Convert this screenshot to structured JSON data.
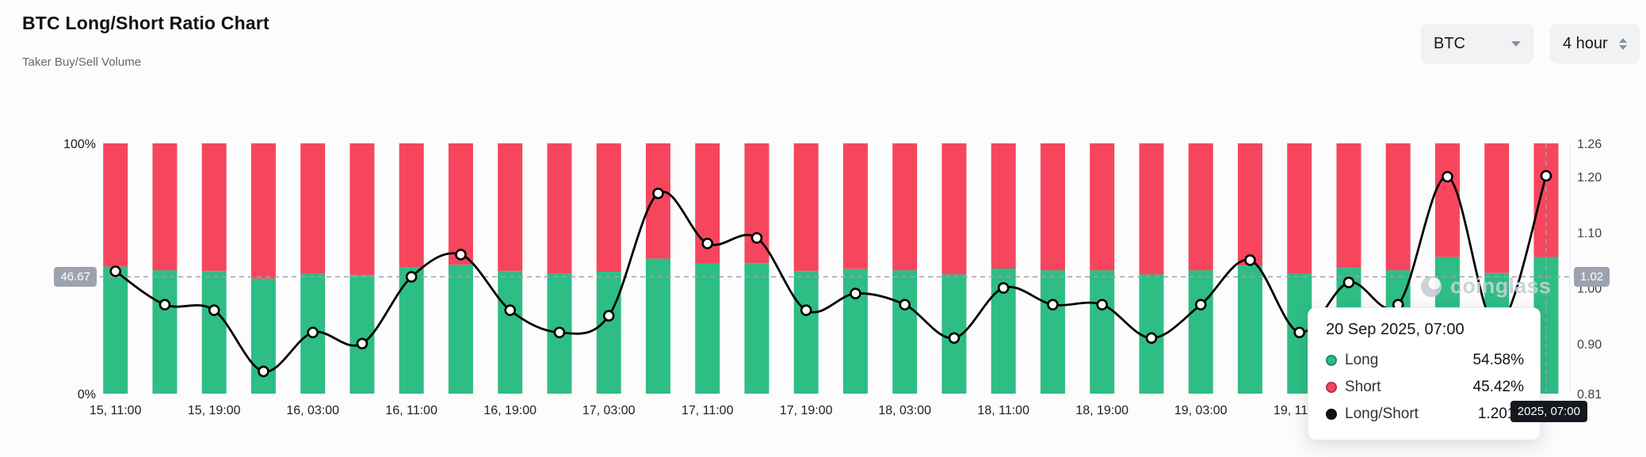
{
  "page": {
    "title": "BTC Long/Short Ratio Chart",
    "subtitle": "Taker Buy/Sell Volume"
  },
  "controls": {
    "symbol": {
      "value": "BTC"
    },
    "interval": {
      "value": "4 hour"
    }
  },
  "watermark": {
    "text": "coinglass"
  },
  "colors": {
    "long": "#2ebd85",
    "short": "#f6465d",
    "line": "#000000",
    "crosshair": "#9aa3ad"
  },
  "crosshair": {
    "left_label": "46.67",
    "right_label": "1.02",
    "time_label": "2025, 07:00",
    "pct": 46.67
  },
  "tooltip": {
    "title": "20 Sep 2025, 07:00",
    "rows": [
      {
        "label": "Long",
        "value": "54.58%",
        "color": "#2ebd85"
      },
      {
        "label": "Short",
        "value": "45.42%",
        "color": "#f6465d"
      },
      {
        "label": "Long/Short",
        "value": "1.2017",
        "color": "#111111"
      }
    ]
  },
  "chart_data": {
    "type": "stacked-bar+line",
    "title": "BTC Long/Short Ratio Chart",
    "subtitle": "Taker Buy/Sell Volume",
    "categories": [
      "15, 11:00",
      "15, 15:00",
      "15, 19:00",
      "15, 23:00",
      "16, 03:00",
      "16, 07:00",
      "16, 11:00",
      "16, 15:00",
      "16, 19:00",
      "16, 23:00",
      "17, 03:00",
      "17, 07:00",
      "17, 11:00",
      "17, 15:00",
      "17, 19:00",
      "17, 23:00",
      "18, 03:00",
      "18, 07:00",
      "18, 11:00",
      "18, 15:00",
      "18, 19:00",
      "18, 23:00",
      "19, 03:00",
      "19, 07:00",
      "19, 11:00",
      "19, 15:00",
      "19, 19:00",
      "19, 23:00",
      "20, 03:00",
      "20, 07:00"
    ],
    "x_tick_every": 2,
    "series": [
      {
        "name": "Long",
        "type": "bar",
        "unit": "%",
        "color": "#2ebd85",
        "values": [
          50.74,
          49.24,
          48.98,
          45.95,
          47.92,
          47.37,
          50.5,
          51.46,
          48.98,
          47.92,
          48.72,
          53.92,
          51.92,
          52.15,
          48.98,
          49.75,
          49.24,
          47.64,
          50.0,
          49.24,
          49.24,
          47.64,
          49.24,
          51.22,
          47.92,
          50.25,
          49.24,
          54.55,
          48.19,
          54.58
        ]
      },
      {
        "name": "Short",
        "type": "bar",
        "unit": "%",
        "color": "#f6465d",
        "values": [
          49.26,
          50.76,
          51.02,
          54.05,
          52.08,
          52.63,
          49.5,
          48.54,
          51.02,
          52.08,
          51.28,
          46.08,
          48.08,
          47.85,
          51.02,
          50.25,
          50.76,
          52.36,
          50.0,
          50.76,
          50.76,
          52.36,
          50.76,
          48.78,
          52.08,
          49.75,
          50.76,
          45.45,
          51.81,
          45.42
        ]
      },
      {
        "name": "Long/Short",
        "type": "line",
        "color": "#000000",
        "values": [
          1.03,
          0.97,
          0.96,
          0.85,
          0.92,
          0.9,
          1.02,
          1.06,
          0.96,
          0.92,
          0.95,
          1.17,
          1.08,
          1.09,
          0.96,
          0.99,
          0.97,
          0.91,
          1.0,
          0.97,
          0.97,
          0.91,
          0.97,
          1.05,
          0.92,
          1.01,
          0.97,
          1.2,
          0.93,
          1.2017
        ]
      }
    ],
    "left_axis": {
      "ticks": [
        "100%",
        "0%"
      ],
      "range": [
        0,
        100
      ]
    },
    "right_axis": {
      "ticks": [
        1.26,
        1.2,
        1.1,
        1.0,
        0.9,
        0.81
      ],
      "range": [
        0.81,
        1.26
      ]
    },
    "legend": "none",
    "grid": "off"
  }
}
